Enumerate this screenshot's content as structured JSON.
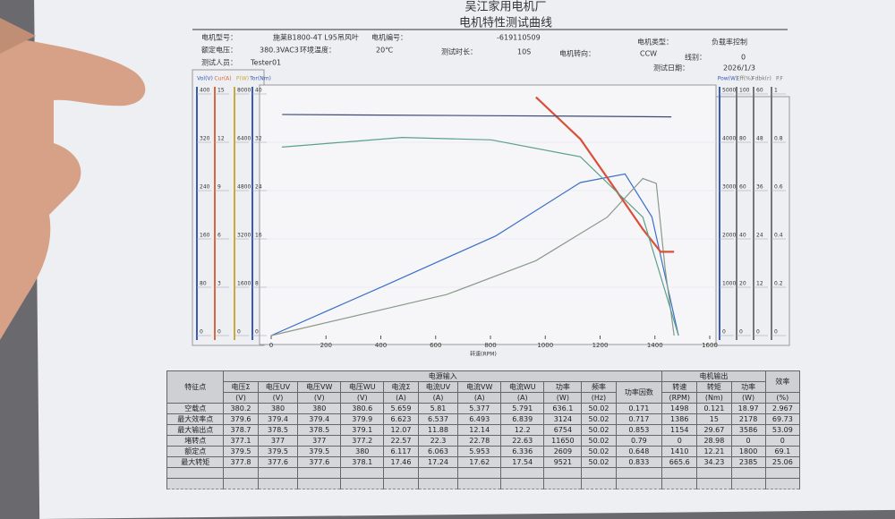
{
  "header": {
    "company": "吴江家用电机厂",
    "title": "电机特性测试曲线",
    "fields": [
      {
        "label": "电机型号：",
        "value": "施莱B1800-4T L95吊风叶"
      },
      {
        "label": "电机编号：",
        "value": "-619110509"
      },
      {
        "label": "电机类型：",
        "value": "负载率控制"
      },
      {
        "label": "额定电压：",
        "value": "380.3VAC3"
      },
      {
        "label": "环境温度：",
        "value": "20℃"
      },
      {
        "label": "测试时长：",
        "value": "10S"
      },
      {
        "label": "电机转向：",
        "value": "CCW"
      },
      {
        "label": "线别：",
        "value": "0"
      },
      {
        "label": "测试人员：",
        "value": "Tester01"
      },
      {
        "label": "测试日期：",
        "value": "2026/1/3"
      }
    ]
  },
  "chart_data": {
    "type": "line",
    "x_label": "转速(RPM)",
    "xlim": [
      0,
      1600
    ],
    "xticks": [
      0,
      200,
      400,
      600,
      800,
      1000,
      1200,
      1400,
      1600
    ],
    "left_axes": [
      {
        "label": "Vol(V)",
        "color": "#3a5bb5",
        "ylim": [
          0,
          400
        ],
        "yticks": [
          0,
          80,
          160,
          240,
          320,
          400
        ]
      },
      {
        "label": "Cur(A)",
        "color": "#d9673a",
        "ylim": [
          0,
          15
        ],
        "yticks": [
          0,
          3,
          6,
          9,
          12,
          15
        ]
      },
      {
        "label": "P(W)",
        "color": "#c9a93a",
        "ylim": [
          0,
          8000
        ],
        "yticks": [
          0,
          1600,
          3200,
          4800,
          6400,
          8000
        ]
      },
      {
        "label": "Tor(Nm)",
        "color": "#3a5bb5",
        "ylim": [
          0,
          40
        ],
        "yticks": [
          0,
          8,
          16,
          24,
          32,
          40
        ]
      }
    ],
    "right_axes": [
      {
        "label": "Pow(W)",
        "color": "#3a5bb5",
        "ylim": [
          0,
          5000
        ],
        "yticks": [
          0,
          1000,
          2000,
          3000,
          4000,
          5000
        ]
      },
      {
        "label": "Eff(%)",
        "color": "#777777",
        "ylim": [
          0,
          100
        ],
        "yticks": [
          0,
          20,
          40,
          60,
          80,
          100
        ]
      },
      {
        "label": "Fdbk(r)",
        "color": "#777777",
        "ylim": [
          0,
          60
        ],
        "yticks": [
          0,
          12,
          24,
          36,
          48,
          60
        ]
      },
      {
        "label": "P.F",
        "color": "#777777",
        "ylim": [
          0,
          1
        ],
        "yticks": [
          0,
          0.2,
          0.4,
          0.6,
          0.8,
          1
        ]
      }
    ],
    "series": [
      {
        "axis": "Pow(W)",
        "color": "#3a6fc9",
        "x": [
          0,
          413,
          820,
          1128,
          1291,
          1389,
          1486
        ],
        "values": [
          0,
          1032,
          2064,
          3167,
          3345,
          2456,
          0
        ]
      },
      {
        "axis": "Eff(%)",
        "color": "#8a9a8a",
        "x": [
          0,
          641,
          966,
          1226,
          1356,
          1405,
          1437,
          1470
        ],
        "values": [
          0,
          17,
          31,
          49,
          65,
          63,
          28,
          0
        ]
      },
      {
        "axis": "Cur(A)",
        "color": "#d9503a",
        "x": [
          966,
          1128,
          1259,
          1356,
          1421,
          1470
        ],
        "values": [
          14.8,
          12.2,
          9.0,
          6.6,
          5.2,
          5.2
        ]
      },
      {
        "axis": "Vol(V)",
        "color": "#3a4a7a",
        "x": [
          40,
          400,
          800,
          1200,
          1460
        ],
        "values": [
          366,
          365,
          364,
          363,
          362
        ]
      },
      {
        "axis": "P.F",
        "color": "#5aa08a",
        "x": [
          39,
          478,
          803,
          1128,
          1356,
          1486
        ],
        "values": [
          0.78,
          0.82,
          0.81,
          0.74,
          0.49,
          0
        ]
      }
    ]
  },
  "table": {
    "row_header": "特征点",
    "groups": [
      {
        "label": "电源输入",
        "columns": [
          {
            "name": "电压Σ",
            "unit": "(V)"
          },
          {
            "name": "电压UV",
            "unit": "(V)"
          },
          {
            "name": "电压VW",
            "unit": "(V)"
          },
          {
            "name": "电压WU",
            "unit": "(V)"
          },
          {
            "name": "电流Σ",
            "unit": "(A)"
          },
          {
            "name": "电流UV",
            "unit": "(A)"
          },
          {
            "name": "电流VW",
            "unit": "(A)"
          },
          {
            "name": "电流WU",
            "unit": "(A)"
          },
          {
            "name": "功率",
            "unit": "(W)"
          },
          {
            "name": "频率",
            "unit": "(Hz)"
          },
          {
            "name": "功率因数"
          }
        ]
      },
      {
        "label": "电机输出",
        "columns": [
          {
            "name": "转速",
            "unit": "(RPM)"
          },
          {
            "name": "转矩",
            "unit": "(Nm)"
          },
          {
            "name": "功率",
            "unit": "(W)"
          }
        ]
      }
    ],
    "efficiency": {
      "name": "效率",
      "unit": "(%)"
    },
    "rows": [
      {
        "label": "空载点",
        "cells": [
          "380.2",
          "380",
          "380",
          "380.6",
          "5.659",
          "5.81",
          "5.377",
          "5.791",
          "636.1",
          "50.02",
          "0.171",
          "1498",
          "0.121",
          "18.97",
          "2.967"
        ]
      },
      {
        "label": "最大效率点",
        "cells": [
          "379.6",
          "379.4",
          "379.4",
          "379.9",
          "6.623",
          "6.537",
          "6.493",
          "6.839",
          "3124",
          "50.02",
          "0.717",
          "1386",
          "15",
          "2178",
          "69.73"
        ]
      },
      {
        "label": "最大输出点",
        "cells": [
          "378.7",
          "378.5",
          "378.5",
          "379.1",
          "12.07",
          "11.88",
          "12.14",
          "12.2",
          "6754",
          "50.02",
          "0.853",
          "1154",
          "29.67",
          "3586",
          "53.09"
        ]
      },
      {
        "label": "堵转点",
        "cells": [
          "377.1",
          "377",
          "377",
          "377.2",
          "22.57",
          "22.3",
          "22.78",
          "22.63",
          "11650",
          "50.02",
          "0.79",
          "0",
          "28.98",
          "0",
          "0"
        ]
      },
      {
        "label": "额定点",
        "cells": [
          "379.5",
          "379.5",
          "379.5",
          "380",
          "6.117",
          "6.063",
          "5.953",
          "6.336",
          "2609",
          "50.02",
          "0.648",
          "1410",
          "12.21",
          "1800",
          "69.1"
        ]
      },
      {
        "label": "最大转矩",
        "cells": [
          "377.8",
          "377.6",
          "377.6",
          "378.1",
          "17.46",
          "17.24",
          "17.62",
          "17.54",
          "9521",
          "50.02",
          "0.833",
          "665.6",
          "34.23",
          "2385",
          "25.06"
        ]
      }
    ]
  }
}
